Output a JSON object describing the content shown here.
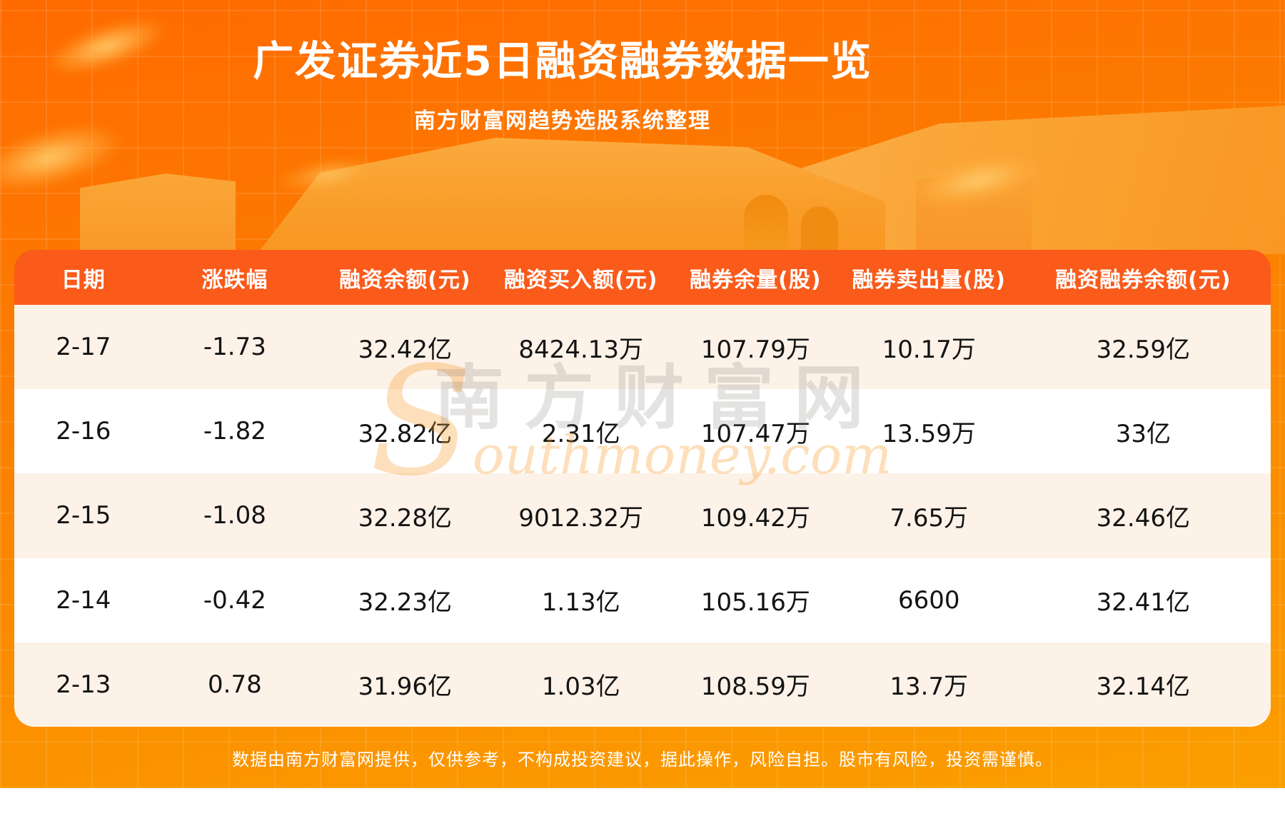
{
  "header": {
    "title": "广发证券近5日融资融券数据一览",
    "subtitle": "南方财富网趋势选股系统整理"
  },
  "watermark": {
    "cn": "南方财富网",
    "en": "Southmoney.com"
  },
  "footer": {
    "disclaimer": "数据由南方财富网提供，仅供参考，不构成投资建议，据此操作，风险自担。股市有风险，投资需谨慎。"
  },
  "colors": {
    "background_top": "#ff6a00",
    "background_bottom": "#fba000",
    "header_row": "#fa5a1a",
    "row_light": "#fdf2e8",
    "row_white": "#ffffff",
    "header_text": "#ffffff",
    "body_text": "#131313"
  },
  "chart_data": {
    "type": "table",
    "title": "广发证券近5日融资融券数据一览",
    "subtitle": "南方财富网趋势选股系统整理",
    "columns": [
      "日期",
      "涨跌幅",
      "融资余额(元)",
      "融资买入额(元)",
      "融券余量(股)",
      "融券卖出量(股)",
      "融资融券余额(元)"
    ],
    "rows": [
      [
        "2-17",
        "-1.73",
        "32.42亿",
        "8424.13万",
        "107.79万",
        "10.17万",
        "32.59亿"
      ],
      [
        "2-16",
        "-1.82",
        "32.82亿",
        "2.31亿",
        "107.47万",
        "13.59万",
        "33亿"
      ],
      [
        "2-15",
        "-1.08",
        "32.28亿",
        "9012.32万",
        "109.42万",
        "7.65万",
        "32.46亿"
      ],
      [
        "2-14",
        "-0.42",
        "32.23亿",
        "1.13亿",
        "105.16万",
        "6600",
        "32.41亿"
      ],
      [
        "2-13",
        "0.78",
        "31.96亿",
        "1.03亿",
        "108.59万",
        "13.7万",
        "32.14亿"
      ]
    ],
    "row_striping": [
      "light",
      "white",
      "light",
      "white",
      "light"
    ]
  }
}
